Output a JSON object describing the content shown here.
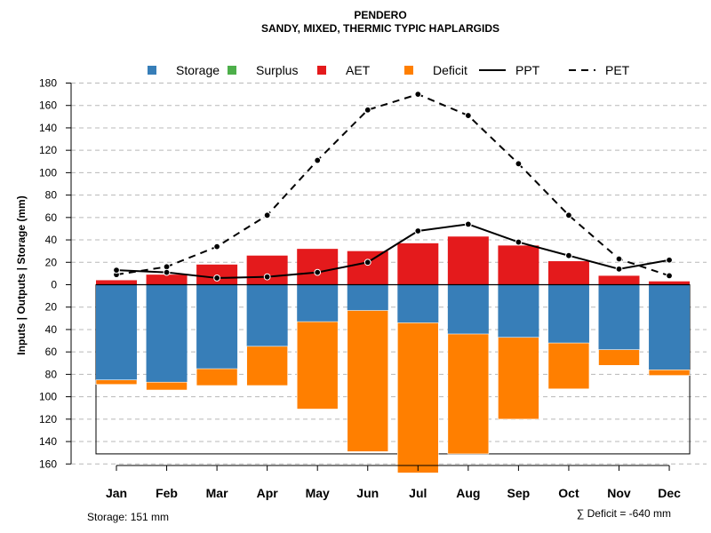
{
  "chart_data": {
    "type": "bar",
    "title": "PENDERO",
    "subtitle": "SANDY, MIXED, THERMIC TYPIC HAPLARGIDS",
    "ylabel": "Inputs | Outputs | Storage    (mm)",
    "categories": [
      "Jan",
      "Feb",
      "Mar",
      "Apr",
      "May",
      "Jun",
      "Jul",
      "Aug",
      "Sep",
      "Oct",
      "Nov",
      "Dec"
    ],
    "yticks_top": [
      "180",
      "160",
      "140",
      "120",
      "100",
      "80",
      "60",
      "40",
      "20",
      "0"
    ],
    "yticks_bottom": [
      "20",
      "40",
      "60",
      "80",
      "100",
      "120",
      "140",
      "160"
    ],
    "ylim": [
      -160,
      180
    ],
    "legend": [
      {
        "label": "Storage",
        "color": "#377EB8",
        "kind": "box"
      },
      {
        "label": "Surplus",
        "color": "#4DAF4A",
        "kind": "box"
      },
      {
        "label": "AET",
        "color": "#E41A1C",
        "kind": "box"
      },
      {
        "label": "Deficit",
        "color": "#FF7F00",
        "kind": "box"
      },
      {
        "label": "PPT",
        "color": "#000000",
        "kind": "solid"
      },
      {
        "label": "PET",
        "color": "#000000",
        "kind": "dashed"
      }
    ],
    "series": [
      {
        "name": "AET",
        "values": [
          4,
          9,
          18,
          26,
          32,
          30,
          37,
          43,
          35,
          21,
          8,
          3
        ]
      },
      {
        "name": "Surplus",
        "values": [
          0,
          0,
          0,
          0,
          0,
          0,
          0,
          0,
          0,
          0,
          0,
          0
        ]
      },
      {
        "name": "Storage",
        "values": [
          85,
          87,
          75,
          55,
          33,
          23,
          34,
          44,
          47,
          52,
          58,
          76
        ]
      },
      {
        "name": "Deficit",
        "values": [
          4,
          7,
          15,
          35,
          78,
          126,
          134,
          107,
          73,
          41,
          14,
          5
        ]
      },
      {
        "name": "PPT",
        "values": [
          13,
          11,
          6,
          7,
          11,
          20,
          48,
          54,
          38,
          26,
          14,
          22
        ]
      },
      {
        "name": "PET",
        "values": [
          9,
          16,
          34,
          62,
          111,
          156,
          170,
          151,
          108,
          62,
          23,
          8
        ]
      }
    ],
    "storage_capacity": 151,
    "footer_left": "Storage: 151 mm",
    "footer_right": "∑ Deficit = -640 mm"
  }
}
